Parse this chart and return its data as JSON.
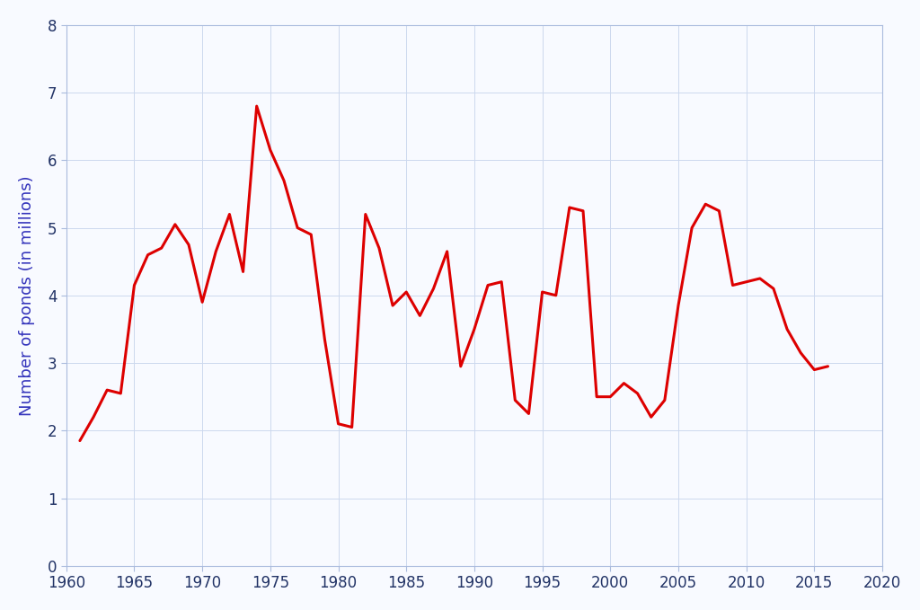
{
  "years": [
    1961,
    1962,
    1963,
    1964,
    1965,
    1966,
    1967,
    1968,
    1969,
    1970,
    1971,
    1972,
    1973,
    1974,
    1975,
    1976,
    1977,
    1978,
    1979,
    1980,
    1981,
    1982,
    1983,
    1984,
    1985,
    1986,
    1987,
    1988,
    1989,
    1990,
    1991,
    1992,
    1993,
    1994,
    1995,
    1996,
    1997,
    1998,
    1999,
    2000,
    2001,
    2002,
    2003,
    2004,
    2005,
    2006,
    2007,
    2008,
    2009,
    2010,
    2011,
    2012,
    2013,
    2014,
    2015,
    2016
  ],
  "values": [
    1.85,
    2.2,
    2.6,
    2.55,
    4.15,
    4.6,
    4.7,
    5.05,
    4.75,
    3.9,
    4.65,
    5.2,
    4.35,
    6.8,
    6.15,
    5.7,
    5.0,
    4.9,
    3.35,
    2.1,
    2.05,
    5.2,
    4.7,
    3.85,
    4.05,
    3.7,
    4.1,
    4.65,
    2.95,
    3.5,
    4.15,
    4.2,
    2.45,
    2.25,
    4.05,
    4.0,
    5.3,
    5.25,
    2.5,
    2.5,
    2.7,
    2.55,
    2.2,
    2.45,
    3.85,
    5.0,
    5.35,
    5.25,
    4.15,
    4.2,
    4.25,
    4.1,
    3.5,
    3.15,
    2.9,
    2.95
  ],
  "line_color": "#dd0000",
  "line_width": 2.2,
  "ylabel": "Number of ponds (in millions)",
  "ylabel_color": "#3333bb",
  "ylabel_fontsize": 13,
  "xlim": [
    1960,
    2020
  ],
  "ylim": [
    0,
    8
  ],
  "yticks": [
    0,
    1,
    2,
    3,
    4,
    5,
    6,
    7,
    8
  ],
  "xticks": [
    1960,
    1965,
    1970,
    1975,
    1980,
    1985,
    1990,
    1995,
    2000,
    2005,
    2010,
    2015,
    2020
  ],
  "tick_color": "#aabbdd",
  "grid_color": "#ccd8ee",
  "background_color": "#f8faff",
  "plot_bg_color": "#f8faff",
  "tick_fontsize": 12,
  "tick_label_color": "#223366"
}
